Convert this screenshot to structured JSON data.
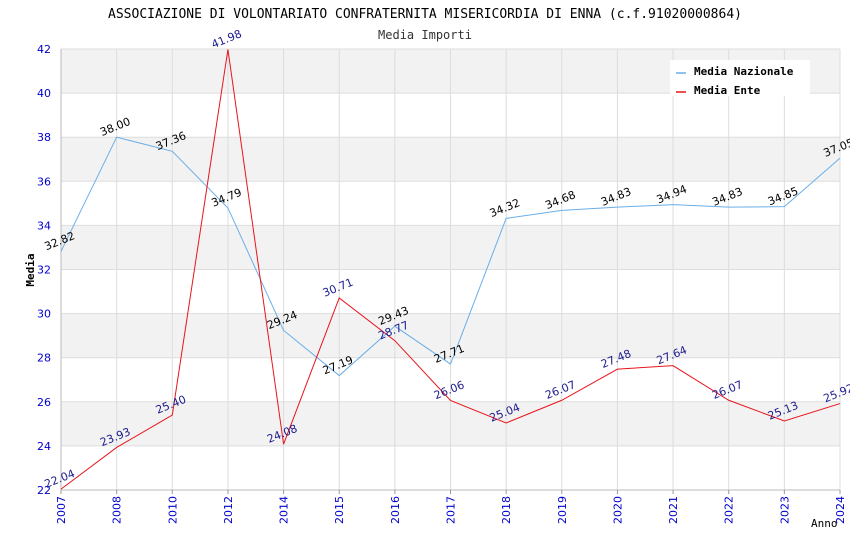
{
  "chart_data": {
    "type": "line",
    "title": "ASSOCIAZIONE DI VOLONTARIATO CONFRATERNITA MISERICORDIA DI ENNA (c.f.91020000864)",
    "subtitle": "Media Importi",
    "xlabel": "Anno",
    "ylabel": "Media",
    "ylim": [
      22,
      42
    ],
    "yticks": [
      "22",
      "24",
      "26",
      "28",
      "30",
      "32",
      "34",
      "36",
      "38",
      "40",
      "42"
    ],
    "categories": [
      "2007",
      "2008",
      "2010",
      "2012",
      "2014",
      "2015",
      "2016",
      "2017",
      "2018",
      "2019",
      "2020",
      "2021",
      "2022",
      "2023",
      "2024"
    ],
    "series": [
      {
        "name": "Media Nazionale",
        "color": "#6aaee8",
        "label_color": "#000000",
        "values": [
          32.82,
          38.0,
          37.36,
          34.79,
          29.24,
          27.19,
          29.43,
          27.71,
          34.32,
          34.68,
          34.83,
          34.94,
          34.83,
          34.85,
          37.05
        ],
        "labels": [
          "32.82",
          "38.00",
          "37.36",
          "34.79",
          "29.24",
          "27.19",
          "29.43",
          "27.71",
          "34.32",
          "34.68",
          "34.83",
          "34.94",
          "34.83",
          "34.85",
          "37.05"
        ]
      },
      {
        "name": "Media Ente",
        "color": "#e8141c",
        "label_color": "#1a1a8c",
        "values": [
          22.04,
          23.93,
          25.4,
          41.98,
          24.08,
          30.71,
          28.77,
          26.06,
          25.04,
          26.07,
          27.48,
          27.64,
          26.07,
          25.13,
          25.92
        ],
        "labels": [
          "22.04",
          "23.93",
          "25.40",
          "41.98",
          "24.08",
          "30.71",
          "28.77",
          "26.06",
          "25.04",
          "26.07",
          "27.48",
          "27.64",
          "26.07",
          "25.13",
          "25.92"
        ]
      }
    ],
    "legend_position": "top-right",
    "grid": true,
    "colors": {
      "band": "#f2f2f2",
      "gridline": "#dddddd",
      "axis_text": "#0000cc"
    }
  }
}
